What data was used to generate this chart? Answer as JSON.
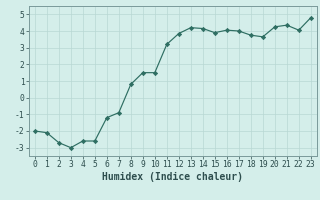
{
  "x": [
    0,
    1,
    2,
    3,
    4,
    5,
    6,
    7,
    8,
    9,
    10,
    11,
    12,
    13,
    14,
    15,
    16,
    17,
    18,
    19,
    20,
    21,
    22,
    23
  ],
  "y": [
    -2.0,
    -2.1,
    -2.7,
    -3.0,
    -2.6,
    -2.6,
    -1.2,
    -0.9,
    0.8,
    1.5,
    1.5,
    3.2,
    3.85,
    4.2,
    4.15,
    3.9,
    4.05,
    4.0,
    3.75,
    3.65,
    4.25,
    4.35,
    4.05,
    4.8
  ],
  "line_color": "#2e6e62",
  "marker": "D",
  "marker_size": 2.2,
  "bg_color": "#d4eeea",
  "plot_bg_color": "#d4eeea",
  "grid_color": "#b8d8d4",
  "xlabel": "Humidex (Indice chaleur)",
  "xlim": [
    -0.5,
    23.5
  ],
  "ylim": [
    -3.5,
    5.5
  ],
  "yticks": [
    -3,
    -2,
    -1,
    0,
    1,
    2,
    3,
    4,
    5
  ],
  "xticks": [
    0,
    1,
    2,
    3,
    4,
    5,
    6,
    7,
    8,
    9,
    10,
    11,
    12,
    13,
    14,
    15,
    16,
    17,
    18,
    19,
    20,
    21,
    22,
    23
  ],
  "tick_label_fontsize": 5.8,
  "xlabel_fontsize": 7.0,
  "tick_color": "#2e4e4e",
  "spine_color": "#7a9a9a"
}
